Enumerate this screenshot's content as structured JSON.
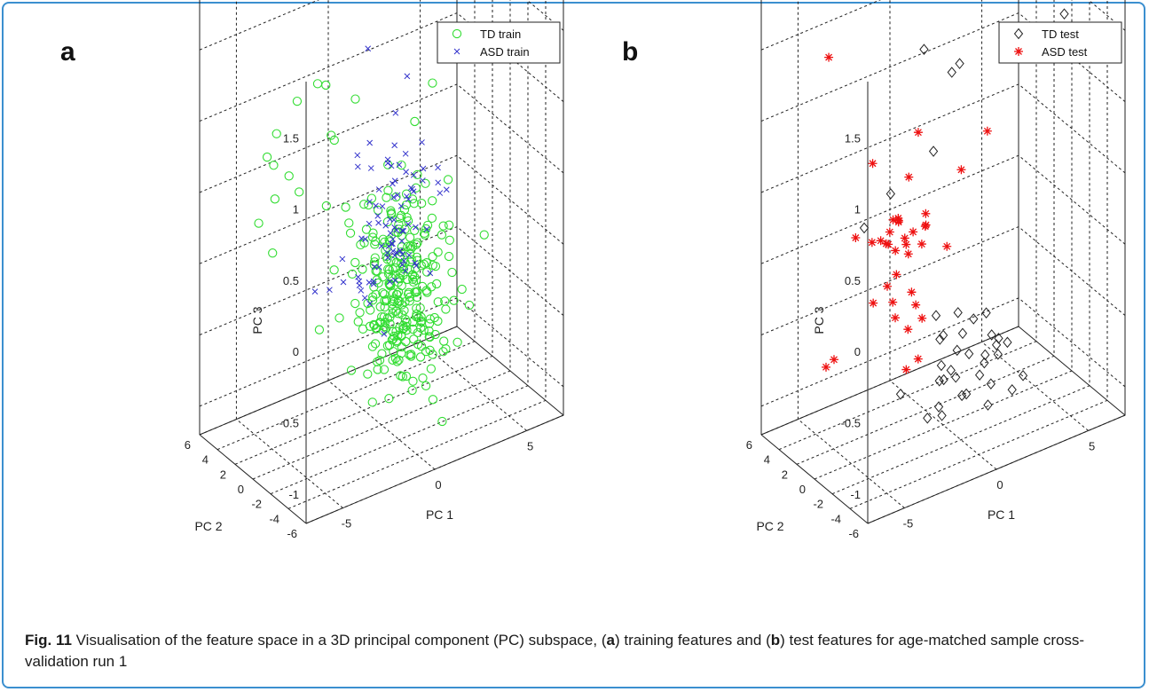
{
  "caption": {
    "label": "Fig. 11",
    "pre": " Visualisation of the feature space in a 3D principal component (PC) subspace, (",
    "a": "a",
    "mid": ") training features and (",
    "b": "b",
    "post": ") test features for age-matched sample cross-validation run 1"
  },
  "colors": {
    "td_train": "#33dd33",
    "asd_train": "#3333cc",
    "td_test": "#222222",
    "asd_test": "#ee1111",
    "grid": "#222222",
    "frame": "#3b8fcf"
  },
  "chart_data": [
    {
      "type": "scatter",
      "panel_label": "a",
      "xlabel": "PC 1",
      "ylabel": "PC 2",
      "zlabel": "PC 3",
      "xlim": [
        -7,
        7
      ],
      "ylim": [
        -6,
        6
      ],
      "zlim": [
        -1.2,
        1.9
      ],
      "x_ticks": [
        "-5",
        "0",
        "5"
      ],
      "y_ticks": [
        "-6",
        "-4",
        "-2",
        "0",
        "2",
        "4",
        "6"
      ],
      "z_ticks": [
        "-1",
        "-0.5",
        "0",
        "0.5",
        "1",
        "1.5"
      ],
      "grid": true,
      "legend_position": "top-right",
      "series": [
        {
          "name": "TD train",
          "marker": "circle",
          "seed": 11,
          "points": [
            [
              -5.2,
              -4.5,
              1.7
            ],
            [
              -5.7,
              -2.3,
              1.5
            ],
            [
              -6.0,
              -0.6,
              1.2
            ],
            [
              -5.5,
              1.5,
              0.9
            ],
            [
              -5.0,
              1.8,
              0.8
            ],
            [
              -4.6,
              0.9,
              0.75
            ],
            [
              -6.2,
              1.0,
              0.5
            ],
            [
              -5.8,
              0.0,
              0.7
            ],
            [
              -4.0,
              1.0,
              0.6
            ],
            [
              -3.9,
              4.2,
              0.0
            ],
            [
              -4.2,
              -1.5,
              1.5
            ],
            [
              0.6,
              -4.5,
              1.4
            ],
            [
              -1.0,
              3.6,
              0.7
            ],
            [
              2.0,
              0.4,
              0.8
            ],
            [
              -3.0,
              0.0,
              0.5
            ],
            [
              -3.5,
              -4.3,
              1.5
            ],
            [
              -4.5,
              -4.0,
              1.25
            ]
          ],
          "clusters": [
            {
              "center": [
                1.2,
                -0.2,
                -0.35
              ],
              "spread": [
                0.9,
                1.0,
                0.28
              ],
              "n": 150
            },
            {
              "center": [
                2.5,
                2.0,
                -0.6
              ],
              "spread": [
                1.5,
                1.6,
                0.32
              ],
              "n": 90
            },
            {
              "center": [
                0.8,
                1.0,
                0.1
              ],
              "spread": [
                1.2,
                1.2,
                0.28
              ],
              "n": 50
            }
          ]
        },
        {
          "name": "ASD train",
          "marker": "x",
          "seed": 27,
          "points": [
            [
              4.0,
              5.4,
              0.75
            ],
            [
              -0.3,
              2.1,
              0.6
            ],
            [
              -2.8,
              1.7,
              -0.2
            ],
            [
              -2.2,
              1.3,
              -0.2
            ],
            [
              1.0,
              3.6,
              1.2
            ]
          ],
          "clusters": [
            {
              "center": [
                1.3,
                1.5,
                0.15
              ],
              "spread": [
                1.2,
                1.0,
                0.3
              ],
              "n": 55
            },
            {
              "center": [
                0.1,
                0.2,
                0.0
              ],
              "spread": [
                1.0,
                1.0,
                0.25
              ],
              "n": 30
            }
          ]
        }
      ]
    },
    {
      "type": "scatter",
      "panel_label": "b",
      "xlabel": "PC 1",
      "ylabel": "PC 2",
      "zlabel": "PC 3",
      "xlim": [
        -7,
        7
      ],
      "ylim": [
        -6,
        6
      ],
      "zlim": [
        -1.2,
        1.9
      ],
      "x_ticks": [
        "-5",
        "0",
        "5"
      ],
      "y_ticks": [
        "-6",
        "-4",
        "-2",
        "0",
        "2",
        "4",
        "6"
      ],
      "z_ticks": [
        "-1",
        "-0.5",
        "0",
        "0.5",
        "1",
        "1.5"
      ],
      "grid": true,
      "legend_position": "top-right",
      "series": [
        {
          "name": "TD test",
          "marker": "diamond",
          "seed": 41,
          "points": [
            [
              -1.7,
              -4.5,
              1.6
            ],
            [
              4.9,
              -3.5,
              1.6
            ],
            [
              2.0,
              6.3,
              1.0
            ],
            [
              3.6,
              5.6,
              0.85
            ],
            [
              -2.7,
              -4.5,
              1.1
            ],
            [
              -3.0,
              -0.3,
              0.6
            ],
            [
              -4.2,
              0.2,
              0.4
            ]
          ],
          "clusters": [
            {
              "center": [
                1.0,
                -0.6,
                -0.75
              ],
              "spread": [
                1.4,
                1.3,
                0.22
              ],
              "n": 32
            }
          ]
        },
        {
          "name": "ASD test",
          "marker": "star",
          "seed": 53,
          "points": [
            [
              -5.5,
              1.5,
              1.6
            ],
            [
              0.2,
              3.5,
              -0.55
            ],
            [
              0.5,
              3.0,
              0.1
            ],
            [
              -4.2,
              3.6,
              -0.7
            ],
            [
              -4.2,
              4.5,
              -0.8
            ],
            [
              -3.0,
              1.8,
              0.15
            ],
            [
              -1.0,
              1.8,
              0.5
            ],
            [
              0.6,
              -0.8,
              0.6
            ],
            [
              -1.5,
              -0.3,
              0.95
            ],
            [
              -3.7,
              2.2,
              0.2
            ],
            [
              2.6,
              0.4,
              0.7
            ]
          ],
          "clusters": [
            {
              "center": [
                -1.4,
                1.2,
                0.05
              ],
              "spread": [
                1.1,
                0.9,
                0.3
              ],
              "n": 28
            }
          ]
        }
      ]
    }
  ]
}
